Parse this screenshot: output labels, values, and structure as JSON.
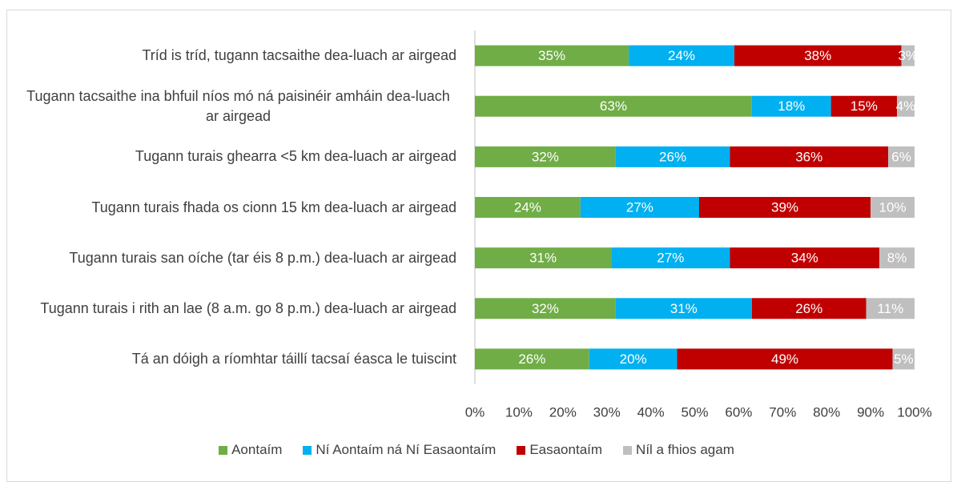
{
  "chart_data": {
    "type": "stacked-bar-horizontal",
    "categories": [
      "Tríd is tríd, tugann tacsaithe dea-luach ar airgead",
      "Tugann tacsaithe ina bhfuil níos mó ná paisinéir amháin dea-luach ar airgead",
      "Tugann turais ghearra <5 km dea-luach ar airgead",
      "Tugann turais fhada os cionn 15 km dea-luach ar airgead",
      "Tugann turais san oíche (tar éis 8 p.m.) dea-luach ar airgead",
      "Tugann turais i rith an lae (8 a.m. go 8 p.m.) dea-luach ar airgead",
      "Tá an dóigh a ríomhtar táillí tacsaí éasca le tuiscint"
    ],
    "series": [
      {
        "name": "Aontaím",
        "color": "#70ad47",
        "values": [
          35,
          63,
          32,
          24,
          31,
          32,
          26
        ],
        "value_labels": [
          "35%",
          "63%",
          "32%",
          "24%",
          "31%",
          "32%",
          "26%"
        ]
      },
      {
        "name": "Ní Aontaím ná Ní Easaontaím",
        "color": "#00b0f0",
        "values": [
          24,
          18,
          26,
          27,
          27,
          31,
          20
        ],
        "value_labels": [
          "24%",
          "18%",
          "26%",
          "27%",
          "27%",
          "31%",
          "20%"
        ]
      },
      {
        "name": "Easaontaím",
        "color": "#c00000",
        "values": [
          38,
          15,
          36,
          39,
          34,
          26,
          49
        ],
        "value_labels": [
          "38%",
          "15%",
          "36%",
          "39%",
          "34%",
          "26%",
          "49%"
        ]
      },
      {
        "name": "Níl a fhios agam",
        "color": "#bfbfbf",
        "values": [
          3,
          4,
          6,
          10,
          8,
          11,
          5
        ],
        "value_labels": [
          "3%",
          "4%",
          "6%",
          "10%",
          "8%",
          "11%",
          "5%"
        ]
      }
    ],
    "xlim": [
      0,
      100
    ],
    "xticks": [
      {
        "value": 0,
        "label": "0%"
      },
      {
        "value": 10,
        "label": "10%"
      },
      {
        "value": 20,
        "label": "20%"
      },
      {
        "value": 30,
        "label": "30%"
      },
      {
        "value": 40,
        "label": "40%"
      },
      {
        "value": 50,
        "label": "50%"
      },
      {
        "value": 60,
        "label": "60%"
      },
      {
        "value": 70,
        "label": "70%"
      },
      {
        "value": 80,
        "label": "80%"
      },
      {
        "value": 90,
        "label": "90%"
      },
      {
        "value": 100,
        "label": "100%"
      }
    ],
    "legend": "bottom"
  }
}
